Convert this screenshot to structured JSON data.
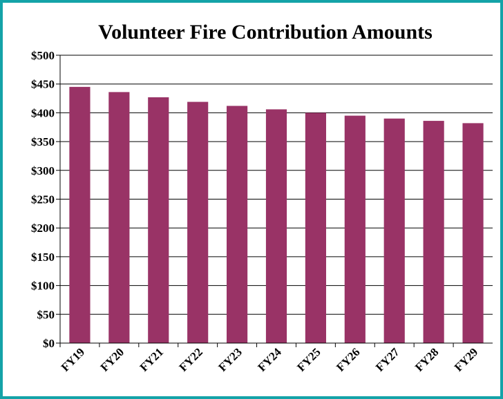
{
  "chart_data": {
    "type": "bar",
    "title": "Volunteer Fire Contribution Amounts",
    "xlabel": "",
    "ylabel": "",
    "categories": [
      "FY19",
      "FY20",
      "FY21",
      "FY22",
      "FY23",
      "FY24",
      "FY25",
      "FY26",
      "FY27",
      "FY28",
      "FY29"
    ],
    "values": [
      445,
      436,
      427,
      419,
      412,
      406,
      400,
      395,
      390,
      386,
      382
    ],
    "ylim": [
      0,
      500
    ],
    "yticks": [
      0,
      50,
      100,
      150,
      200,
      250,
      300,
      350,
      400,
      450,
      500
    ],
    "ytick_labels": [
      "$0",
      "$50",
      "$100",
      "$150",
      "$200",
      "$250",
      "$300",
      "$350",
      "$400",
      "$450",
      "$500"
    ],
    "grid": true,
    "legend": "none",
    "bar_color": "#993366",
    "border_color": "#14a3a8"
  }
}
